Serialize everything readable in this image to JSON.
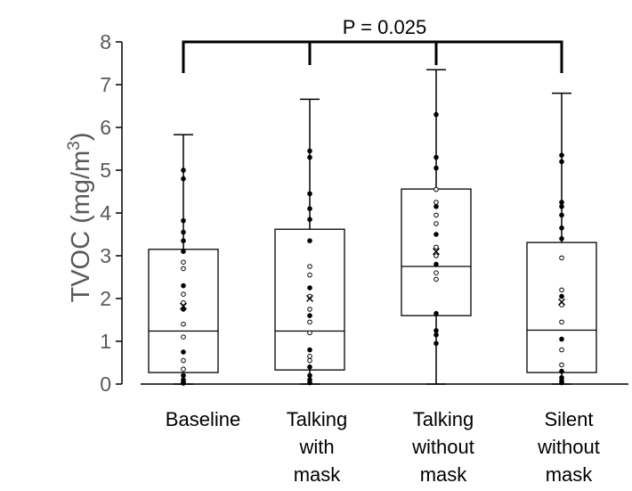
{
  "chart_data": {
    "type": "box",
    "ylabel": "TVOC (mg/m",
    "ylabel_sup": "3",
    "ylabel_close": ")",
    "ylim": [
      0,
      8
    ],
    "yticks": [
      "0",
      "1",
      "2",
      "3",
      "4",
      "5",
      "6",
      "7",
      "8"
    ],
    "grid": false,
    "annotation": "P = 0.025",
    "categories": [
      [
        "Baseline"
      ],
      [
        "Talking",
        "with",
        "mask"
      ],
      [
        "Talking",
        "without",
        "mask"
      ],
      [
        "Silent",
        "without",
        "mask"
      ]
    ],
    "boxes": [
      {
        "min": 0.0,
        "q1": 0.27,
        "median": 1.24,
        "q3": 3.15,
        "max": 5.83,
        "mean": 1.82,
        "points": [
          0.02,
          0.05,
          0.1,
          0.2,
          0.35,
          0.55,
          0.75,
          1.1,
          1.4,
          1.75,
          1.9,
          2.1,
          2.3,
          2.7,
          2.85,
          3.1,
          3.35,
          3.55,
          3.82,
          4.8,
          5.0
        ]
      },
      {
        "min": 0.0,
        "q1": 0.33,
        "median": 1.24,
        "q3": 3.62,
        "max": 6.66,
        "mean": 2.0,
        "points": [
          0.03,
          0.1,
          0.2,
          0.4,
          0.55,
          0.65,
          0.8,
          1.2,
          1.45,
          1.6,
          1.75,
          2.05,
          2.25,
          2.55,
          2.75,
          3.35,
          3.85,
          4.1,
          4.45,
          5.3,
          5.45
        ]
      },
      {
        "min": 0.0,
        "q1": 1.6,
        "median": 2.75,
        "q3": 4.56,
        "max": 7.35,
        "mean": 3.1,
        "points": [
          0.95,
          1.15,
          1.25,
          1.65,
          2.45,
          2.6,
          2.8,
          3.0,
          3.2,
          3.5,
          3.75,
          3.95,
          4.15,
          4.25,
          4.55,
          5.05,
          5.3,
          6.3
        ]
      },
      {
        "min": 0.0,
        "q1": 0.27,
        "median": 1.26,
        "q3": 3.31,
        "max": 6.8,
        "mean": 1.92,
        "points": [
          0.03,
          0.08,
          0.15,
          0.3,
          0.45,
          0.8,
          1.05,
          1.45,
          1.85,
          2.05,
          2.2,
          2.95,
          3.4,
          3.65,
          3.95,
          4.15,
          4.25,
          5.2,
          5.35
        ]
      }
    ]
  }
}
